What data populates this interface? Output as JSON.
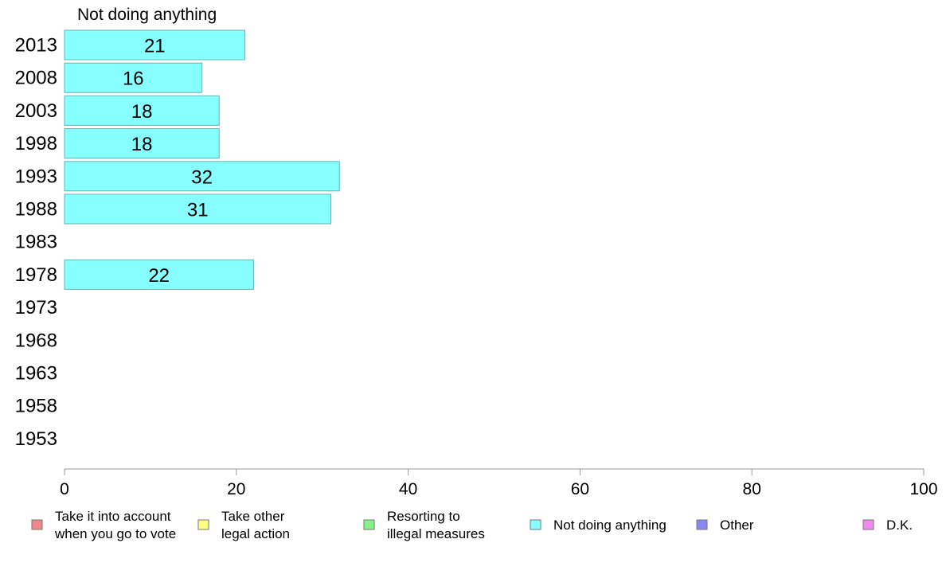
{
  "chart_data": {
    "type": "bar",
    "orientation": "horizontal",
    "title": "Not doing anything",
    "categories": [
      "2013",
      "2008",
      "2003",
      "1998",
      "1993",
      "1988",
      "1983",
      "1978",
      "1973",
      "1968",
      "1963",
      "1958",
      "1953"
    ],
    "series": [
      {
        "name": "Not doing anything",
        "color": "#88ffff",
        "values": [
          21,
          16,
          18,
          18,
          32,
          31,
          null,
          22,
          null,
          null,
          null,
          null,
          null
        ],
        "labels": [
          "21",
          "16",
          "18",
          "18",
          "32",
          "31",
          "",
          "22",
          "",
          "",
          "",
          "",
          ""
        ]
      }
    ],
    "xlim": [
      0,
      100
    ],
    "xticks": [
      0,
      20,
      40,
      60,
      80,
      100
    ],
    "grid": false,
    "legend_position": "bottom",
    "legend": [
      {
        "lines": [
          "Take it into account",
          "when you go to vote"
        ],
        "color": "#f08888"
      },
      {
        "lines": [
          "Take other",
          "legal action"
        ],
        "color": "#ffff88"
      },
      {
        "lines": [
          "Resorting to",
          "illegal measures"
        ],
        "color": "#88f088"
      },
      {
        "lines": [
          "Not doing anything"
        ],
        "color": "#88ffff"
      },
      {
        "lines": [
          "Other"
        ],
        "color": "#8888f0"
      },
      {
        "lines": [
          "D.K."
        ],
        "color": "#f088f0"
      }
    ]
  }
}
